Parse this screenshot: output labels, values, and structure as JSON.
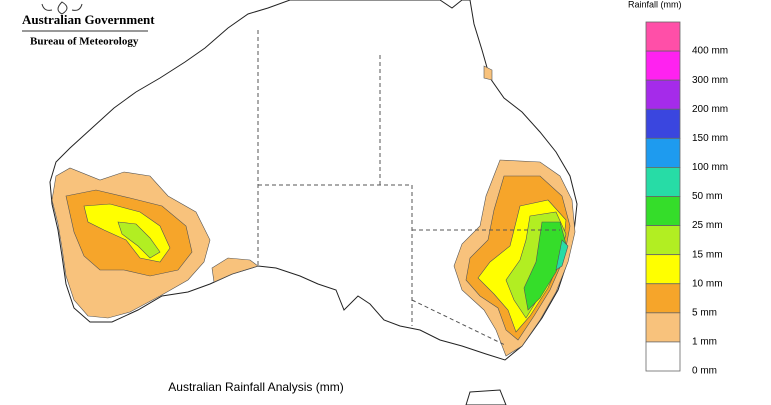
{
  "header": {
    "agency": "Australian Government",
    "bureau": "Bureau of Meteorology"
  },
  "map": {
    "title": "Australian Rainfall Analysis (mm)"
  },
  "legend": {
    "title": "Rainfall (mm)",
    "items": [
      {
        "label": "400 mm",
        "color": "#ff4fa8"
      },
      {
        "label": "300 mm",
        "color": "#ff22f0"
      },
      {
        "label": "200 mm",
        "color": "#a52bea"
      },
      {
        "label": "150 mm",
        "color": "#3a46df"
      },
      {
        "label": "100 mm",
        "color": "#1e9bef"
      },
      {
        "label": "50 mm",
        "color": "#27dca6"
      },
      {
        "label": "25 mm",
        "color": "#35dd2a"
      },
      {
        "label": "15 mm",
        "color": "#b2ee22"
      },
      {
        "label": "10 mm",
        "color": "#ffff00"
      },
      {
        "label": "5 mm",
        "color": "#f6a52a"
      },
      {
        "label": "1 mm",
        "color": "#f8c27c"
      },
      {
        "label": "0 mm",
        "color": "#ffffff"
      }
    ]
  }
}
